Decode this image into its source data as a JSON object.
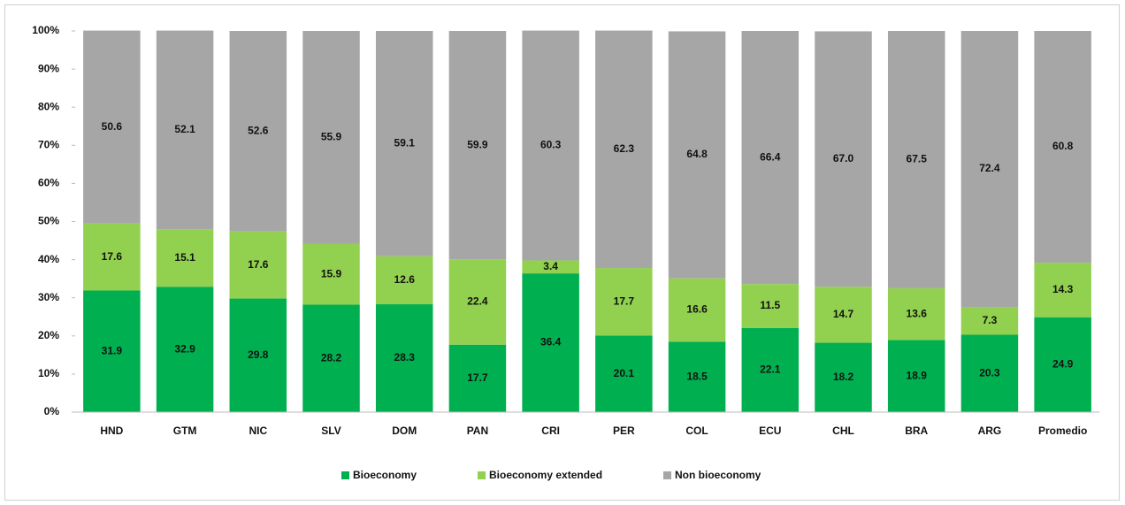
{
  "chart_data": {
    "type": "stacked_bar",
    "categories": [
      "HND",
      "GTM",
      "NIC",
      "SLV",
      "DOM",
      "PAN",
      "CRI",
      "PER",
      "COL",
      "ECU",
      "CHL",
      "BRA",
      "ARG",
      "Promedio"
    ],
    "series": [
      {
        "name": "Bioeconomy",
        "color": "#00b050",
        "values": [
          31.9,
          32.9,
          29.8,
          28.2,
          28.3,
          17.7,
          36.4,
          20.1,
          18.5,
          22.1,
          18.2,
          18.9,
          20.3,
          24.9
        ]
      },
      {
        "name": "Bioeconomy extended",
        "color": "#92d050",
        "values": [
          17.6,
          15.1,
          17.6,
          15.9,
          12.6,
          22.4,
          3.4,
          17.7,
          16.6,
          11.5,
          14.7,
          13.6,
          7.3,
          14.3
        ]
      },
      {
        "name": "Non bioeconomy",
        "color": "#a6a6a6",
        "values": [
          50.6,
          52.1,
          52.6,
          55.9,
          59.1,
          59.9,
          60.3,
          62.3,
          64.8,
          66.4,
          67.0,
          67.5,
          72.4,
          60.8
        ],
        "value_labels": [
          "50.6",
          "52.1",
          "52.6",
          "55.9",
          "59.1",
          "59.9",
          "60.3",
          "62.3",
          "64.8",
          "66.4",
          "67.0",
          "67.5",
          "72.4",
          "60.8"
        ]
      }
    ],
    "ylim": [
      0,
      100
    ],
    "yticks": [
      {
        "value": 0,
        "label": "0%"
      },
      {
        "value": 10,
        "label": "10%"
      },
      {
        "value": 20,
        "label": "20%"
      },
      {
        "value": 30,
        "label": "30%"
      },
      {
        "value": 40,
        "label": "40%"
      },
      {
        "value": 50,
        "label": "50%"
      },
      {
        "value": 60,
        "label": "60%"
      },
      {
        "value": 70,
        "label": "70%"
      },
      {
        "value": 80,
        "label": "80%"
      },
      {
        "value": 90,
        "label": "90%"
      },
      {
        "value": 100,
        "label": "100%"
      }
    ],
    "legend": "bottom"
  }
}
